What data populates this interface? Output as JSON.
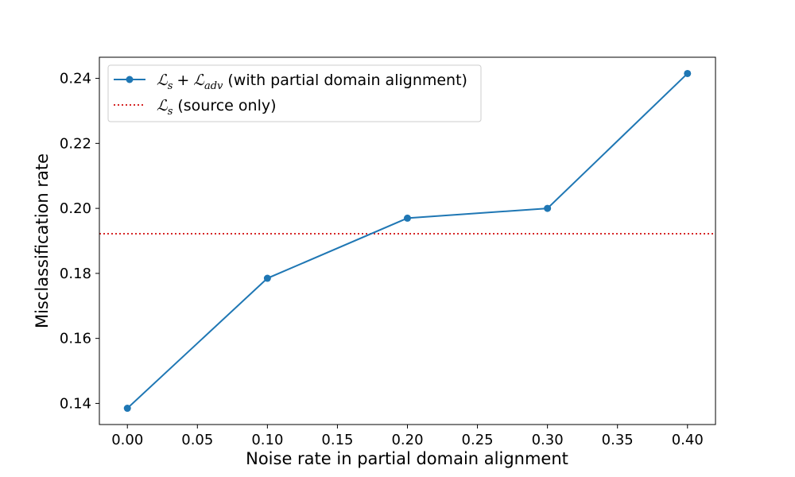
{
  "chart_data": {
    "type": "line",
    "title": "",
    "xlabel": "Noise rate in partial domain alignment",
    "ylabel": "Misclassification rate",
    "xlim": [
      -0.02,
      0.42
    ],
    "ylim": [
      0.1335,
      0.2465
    ],
    "x_ticks": [
      "0.00",
      "0.05",
      "0.10",
      "0.15",
      "0.20",
      "0.25",
      "0.30",
      "0.35",
      "0.40"
    ],
    "y_ticks": [
      "0.14",
      "0.16",
      "0.18",
      "0.20",
      "0.22",
      "0.24"
    ],
    "grid": false,
    "legend_position": "top-left",
    "series": [
      {
        "name": "𝓛s + 𝓛adv (with partial domain alignment)",
        "legend_math": "ℒ",
        "legend_sub1": "s",
        "legend_plus": "+",
        "legend_math2": "ℒ",
        "legend_sub2": "adv",
        "legend_suffix": "(with partial domain alignment)",
        "style": "line-marker",
        "color": "#1f77b4",
        "x": [
          0.0,
          0.1,
          0.2,
          0.3,
          0.4
        ],
        "y": [
          0.1385,
          0.1785,
          0.197,
          0.2,
          0.2415
        ]
      }
    ],
    "reference_lines": [
      {
        "name": "𝓛s (source only)",
        "legend_math": "ℒ",
        "legend_sub1": "s",
        "legend_suffix": "(source only)",
        "style": "dotted",
        "color": "#d62728",
        "y": 0.1922
      }
    ]
  }
}
